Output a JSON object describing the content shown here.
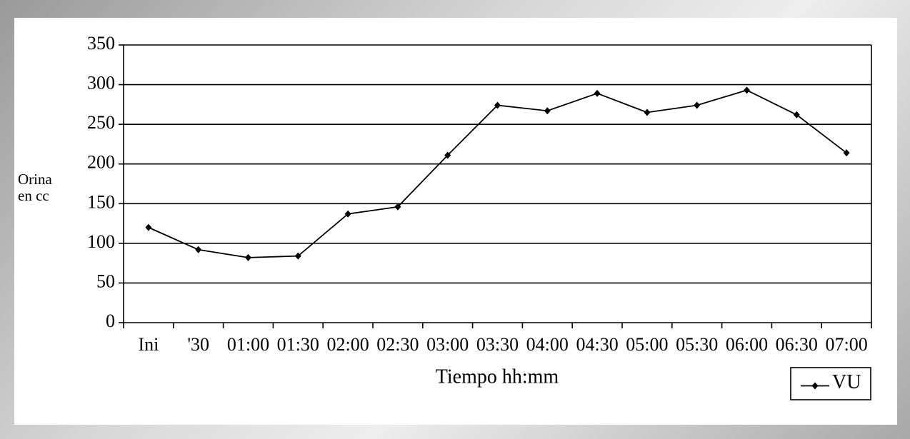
{
  "chart_data": {
    "type": "line",
    "xlabel": "Tiempo hh:mm",
    "ylabel": [
      "Orina",
      "en cc"
    ],
    "categories": [
      "Ini",
      "'30",
      "01:00",
      "01:30",
      "02:00",
      "02:30",
      "03:00",
      "03:30",
      "04:00",
      "04:30",
      "05:00",
      "05:30",
      "06:00",
      "06:30",
      "07:00"
    ],
    "series": [
      {
        "name": "VU",
        "color": "#000000",
        "values": [
          120,
          92,
          82,
          84,
          137,
          146,
          211,
          274,
          267,
          289,
          265,
          274,
          293,
          262,
          214
        ]
      }
    ],
    "ylim": [
      0,
      350
    ],
    "yticks": [
      0,
      50,
      100,
      150,
      200,
      250,
      300,
      350
    ],
    "grid": true,
    "legend": "bottom-right"
  }
}
